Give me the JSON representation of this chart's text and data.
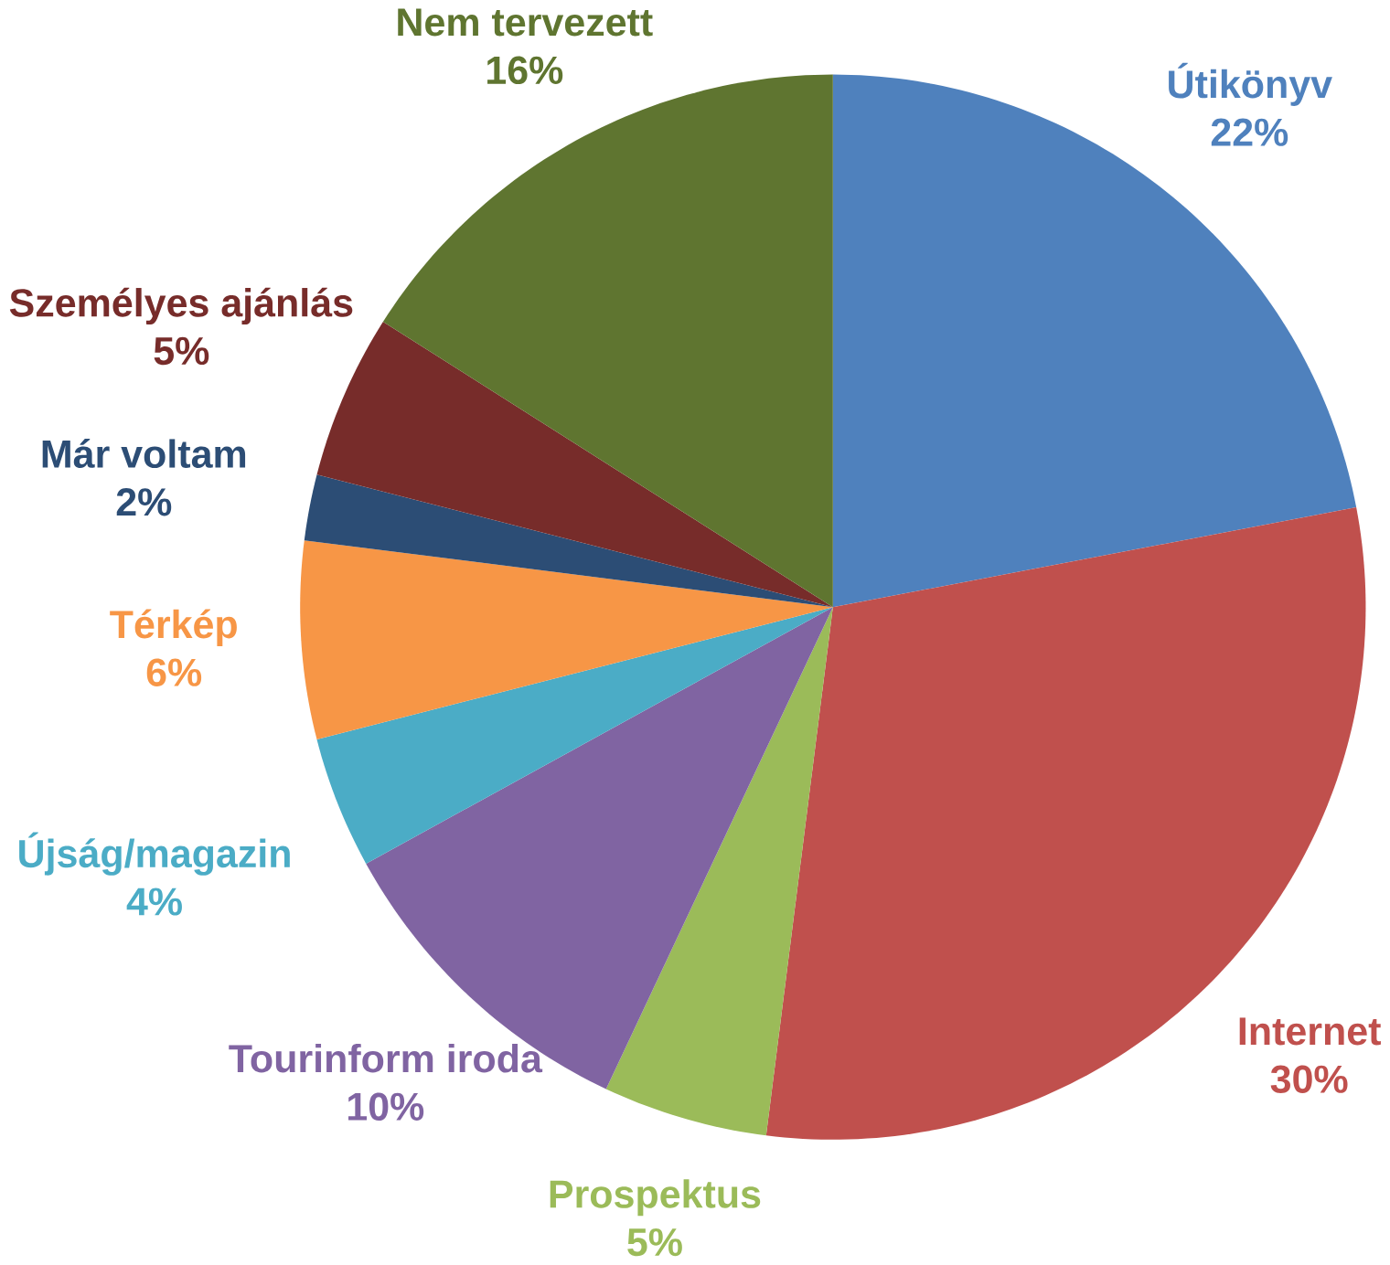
{
  "chart_data": {
    "type": "pie",
    "categories": [
      "Útikönyv",
      "Internet",
      "Prospektus",
      "Tourinform iroda",
      "Újság/magazin",
      "Térkép",
      "Már voltam",
      "Személyes ajánlás",
      "Nem tervezett"
    ],
    "values": [
      22,
      30,
      5,
      10,
      4,
      6,
      2,
      5,
      16
    ],
    "value_labels": [
      "22%",
      "30%",
      "5%",
      "10%",
      "4%",
      "6%",
      "2%",
      "5%",
      "16%"
    ],
    "colors": [
      "#4f81bd",
      "#c0504d",
      "#9bbb59",
      "#8064a2",
      "#4bacc6",
      "#f79646",
      "#2c4d75",
      "#772c2a",
      "#5f7530"
    ]
  }
}
